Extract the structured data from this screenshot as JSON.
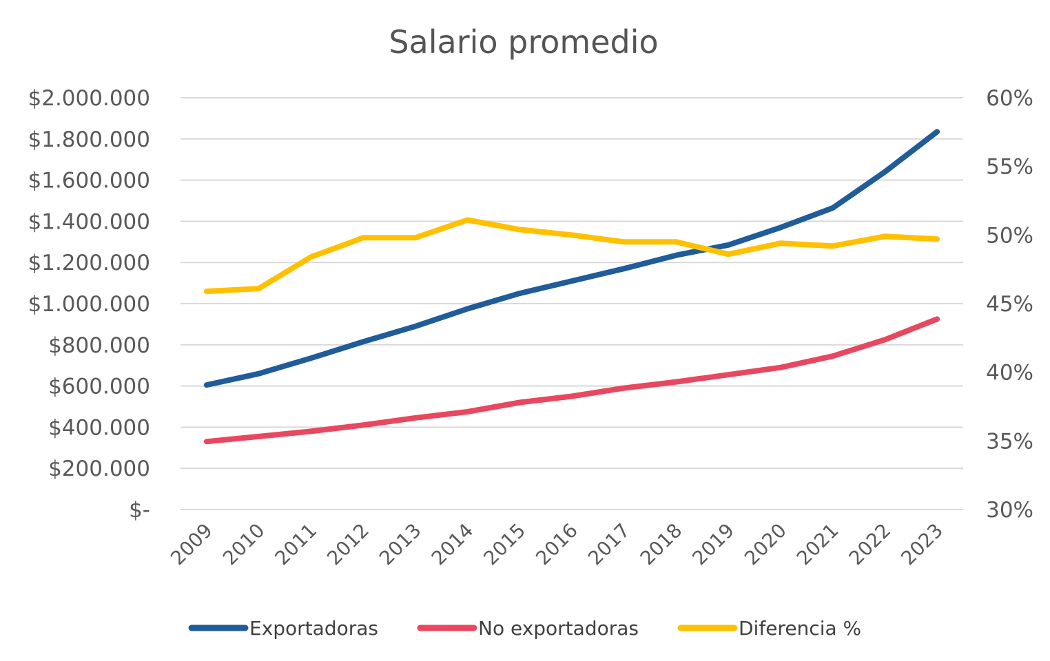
{
  "chart_data": {
    "type": "line",
    "title": "Salario promedio",
    "categories": [
      "2009",
      "2010",
      "2011",
      "2012",
      "2013",
      "2014",
      "2015",
      "2016",
      "2017",
      "2018",
      "2019",
      "2020",
      "2021",
      "2022",
      "2023"
    ],
    "y_left": {
      "range": [
        0,
        2000000
      ],
      "tick_labels": [
        "$-",
        "$200.000",
        "$400.000",
        "$600.000",
        "$800.000",
        "$1.000.000",
        "$1.200.000",
        "$1.400.000",
        "$1.600.000",
        "$1.800.000",
        "$2.000.000"
      ]
    },
    "y_right": {
      "range": [
        30,
        60
      ],
      "tick_labels": [
        "30%",
        "35%",
        "40%",
        "45%",
        "50%",
        "55%",
        "60%"
      ]
    },
    "grid": true,
    "legend_position": "bottom",
    "series": [
      {
        "name": "Exportadoras",
        "axis": "left",
        "color": "#1F5C99",
        "values": [
          605000,
          660000,
          735000,
          815000,
          890000,
          975000,
          1050000,
          1110000,
          1170000,
          1235000,
          1285000,
          1370000,
          1465000,
          1640000,
          1835000
        ]
      },
      {
        "name": "No exportadoras",
        "axis": "left",
        "color": "#E8485F",
        "values": [
          330000,
          355000,
          380000,
          410000,
          445000,
          475000,
          520000,
          550000,
          590000,
          620000,
          655000,
          690000,
          745000,
          825000,
          925000
        ]
      },
      {
        "name": "Diferencia %",
        "axis": "right",
        "color": "#FFC000",
        "values": [
          45.9,
          46.1,
          48.4,
          49.8,
          49.8,
          51.1,
          50.4,
          50.0,
          49.5,
          49.5,
          48.6,
          49.4,
          49.2,
          49.9,
          49.7
        ]
      }
    ]
  }
}
